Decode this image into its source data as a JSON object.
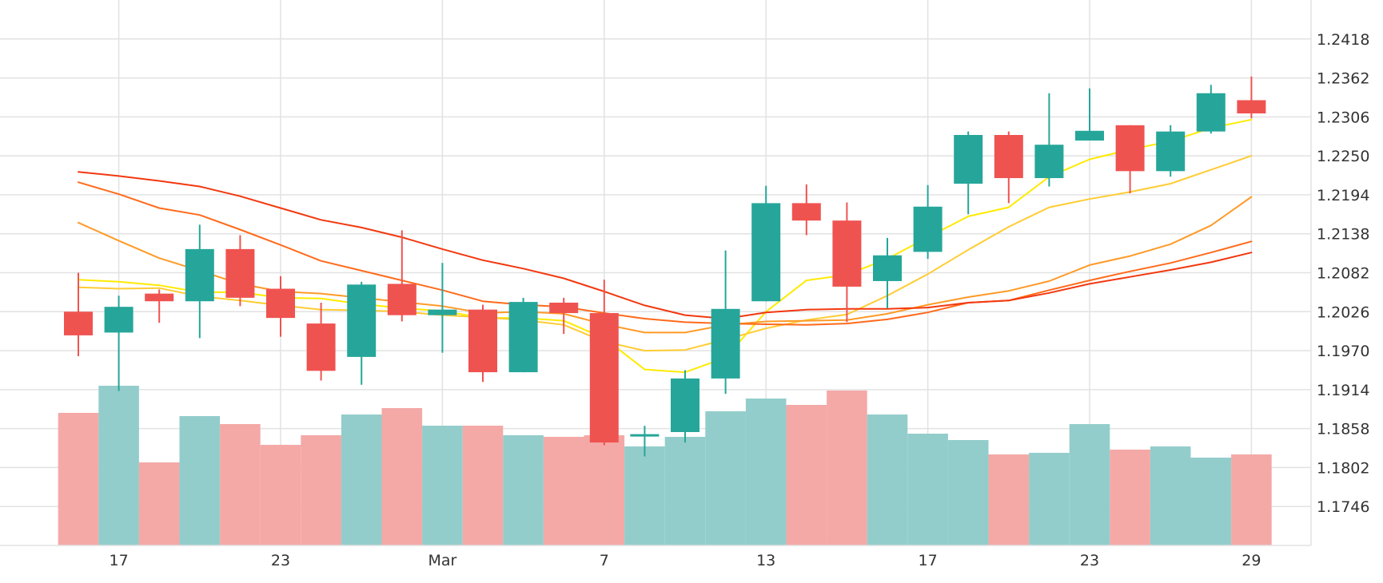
{
  "chart_data": {
    "type": "candlestick",
    "title": "",
    "xlabel": "",
    "ylabel": "",
    "ylim": [
      1.169,
      1.2474
    ],
    "grid": true,
    "y_ticks": [
      "1.2418",
      "1.2362",
      "1.2306",
      "1.2250",
      "1.2194",
      "1.2138",
      "1.2082",
      "1.2026",
      "1.1970",
      "1.1914",
      "1.1858",
      "1.1802",
      "1.1746"
    ],
    "x_ticks": [
      {
        "label": "17",
        "index": 1
      },
      {
        "label": "23",
        "index": 5
      },
      {
        "label": "Mar",
        "index": 9
      },
      {
        "label": "7",
        "index": 13
      },
      {
        "label": "13",
        "index": 17
      },
      {
        "label": "17",
        "index": 21
      },
      {
        "label": "23",
        "index": 25
      },
      {
        "label": "29",
        "index": 29
      }
    ],
    "colors": {
      "up": "#26a69a",
      "down": "#ef5350",
      "up_volume": "#93cdcb",
      "down_volume": "#f4a9a7",
      "grid": "#e2e2e2"
    },
    "candles": [
      {
        "open": 1.2026,
        "high": 1.2082,
        "low": 1.1962,
        "close": 1.1992
      },
      {
        "open": 1.1996,
        "high": 1.2049,
        "low": 1.1912,
        "close": 1.2033
      },
      {
        "open": 1.2052,
        "high": 1.2058,
        "low": 1.201,
        "close": 1.2041
      },
      {
        "open": 1.2041,
        "high": 1.2151,
        "low": 1.1988,
        "close": 1.2116
      },
      {
        "open": 1.2116,
        "high": 1.2136,
        "low": 1.2034,
        "close": 1.2046
      },
      {
        "open": 1.2059,
        "high": 1.2077,
        "low": 1.199,
        "close": 1.2017
      },
      {
        "open": 1.2009,
        "high": 1.2039,
        "low": 1.1927,
        "close": 1.1941
      },
      {
        "open": 1.1961,
        "high": 1.2069,
        "low": 1.1921,
        "close": 1.2065
      },
      {
        "open": 1.2066,
        "high": 1.2143,
        "low": 1.2012,
        "close": 1.2021
      },
      {
        "open": 1.2021,
        "high": 1.2096,
        "low": 1.1967,
        "close": 1.2029
      },
      {
        "open": 1.2029,
        "high": 1.2036,
        "low": 1.1925,
        "close": 1.1939
      },
      {
        "open": 1.1939,
        "high": 1.2046,
        "low": 1.1939,
        "close": 1.204
      },
      {
        "open": 1.2039,
        "high": 1.2046,
        "low": 1.1994,
        "close": 1.2024
      },
      {
        "open": 1.2024,
        "high": 1.2072,
        "low": 1.1834,
        "close": 1.1838
      },
      {
        "open": 1.1848,
        "high": 1.1862,
        "low": 1.1818,
        "close": 1.185
      },
      {
        "open": 1.1853,
        "high": 1.1942,
        "low": 1.1838,
        "close": 1.193
      },
      {
        "open": 1.193,
        "high": 1.2114,
        "low": 1.1908,
        "close": 1.203
      },
      {
        "open": 1.2041,
        "high": 1.2207,
        "low": 1.2041,
        "close": 1.2182
      },
      {
        "open": 1.2182,
        "high": 1.2209,
        "low": 1.2136,
        "close": 1.2157
      },
      {
        "open": 1.2157,
        "high": 1.2183,
        "low": 1.2011,
        "close": 1.2062
      },
      {
        "open": 1.207,
        "high": 1.2132,
        "low": 1.2031,
        "close": 1.2107
      },
      {
        "open": 1.2112,
        "high": 1.2208,
        "low": 1.2102,
        "close": 1.2177
      },
      {
        "open": 1.221,
        "high": 1.2285,
        "low": 1.2166,
        "close": 1.228
      },
      {
        "open": 1.228,
        "high": 1.2285,
        "low": 1.2182,
        "close": 1.2218
      },
      {
        "open": 1.2218,
        "high": 1.234,
        "low": 1.2206,
        "close": 1.2266
      },
      {
        "open": 1.2272,
        "high": 1.2347,
        "low": 1.2272,
        "close": 1.2286
      },
      {
        "open": 1.2294,
        "high": 1.2294,
        "low": 1.2196,
        "close": 1.2228
      },
      {
        "open": 1.2228,
        "high": 1.2294,
        "low": 1.222,
        "close": 1.2285
      },
      {
        "open": 1.2285,
        "high": 1.2352,
        "low": 1.2282,
        "close": 1.234
      },
      {
        "open": 1.233,
        "high": 1.2364,
        "low": 1.2304,
        "close": 1.2311
      }
    ],
    "volume": {
      "max": 1.0,
      "values": [
        0.83,
        1.0,
        0.52,
        0.81,
        0.76,
        0.63,
        0.69,
        0.82,
        0.86,
        0.75,
        0.75,
        0.69,
        0.68,
        0.69,
        0.62,
        0.68,
        0.84,
        0.92,
        0.88,
        0.97,
        0.82,
        0.7,
        0.66,
        0.57,
        0.58,
        0.76,
        0.6,
        0.62,
        0.55,
        0.57
      ]
    },
    "series": [
      {
        "color": "#ffea00",
        "values": [
          1.2072,
          1.2069,
          1.2064,
          1.2054,
          1.2054,
          1.2046,
          1.2045,
          1.2037,
          1.2031,
          1.2027,
          1.2017,
          1.2017,
          1.2013,
          1.1988,
          1.1943,
          1.1939,
          1.196,
          1.2026,
          1.2071,
          1.2079,
          1.2102,
          1.2133,
          1.2163,
          1.2176,
          1.222,
          1.2245,
          1.2259,
          1.2271,
          1.229,
          1.2302
        ]
      },
      {
        "color": "#ffcc33",
        "values": [
          1.2061,
          1.2059,
          1.206,
          1.2048,
          1.2042,
          1.2035,
          1.2029,
          1.2028,
          1.2026,
          1.2021,
          1.2018,
          1.2014,
          1.2007,
          1.1983,
          1.197,
          1.1971,
          1.1986,
          1.2002,
          1.2014,
          1.2022,
          1.2049,
          1.208,
          1.2115,
          1.2148,
          1.2176,
          1.2188,
          1.2198,
          1.221,
          1.223,
          1.225
        ]
      },
      {
        "color": "#ff9a26",
        "values": [
          1.2154,
          1.2128,
          1.2103,
          1.2085,
          1.2066,
          1.2055,
          1.2052,
          1.2046,
          1.204,
          1.2034,
          1.2024,
          1.2026,
          1.2023,
          1.2008,
          1.1996,
          1.1996,
          1.2007,
          1.2012,
          1.2013,
          1.2014,
          1.2023,
          1.2036,
          1.2047,
          1.2056,
          1.207,
          1.2093,
          1.2106,
          1.2123,
          1.215,
          1.2191
        ]
      },
      {
        "color": "#ff6a1a",
        "values": [
          1.2212,
          1.2195,
          1.2175,
          1.2165,
          1.2144,
          1.2122,
          1.2099,
          1.2085,
          1.2071,
          1.2057,
          1.2041,
          1.2036,
          1.2033,
          1.2024,
          1.2016,
          1.2011,
          1.2009,
          1.2008,
          1.2007,
          1.2009,
          1.2015,
          1.2025,
          1.2039,
          1.2042,
          1.2057,
          1.2071,
          1.2084,
          1.2096,
          1.2111,
          1.2127
        ]
      },
      {
        "color": "#f2380f",
        "values": [
          1.2227,
          1.2221,
          1.2214,
          1.2206,
          1.2192,
          1.2175,
          1.2158,
          1.2147,
          1.2133,
          1.2116,
          1.21,
          1.2088,
          1.2074,
          1.2055,
          1.2035,
          1.2021,
          1.2016,
          1.2025,
          1.2029,
          1.203,
          1.203,
          1.2032,
          1.2039,
          1.2042,
          1.2053,
          1.2066,
          1.2076,
          1.2086,
          1.2097,
          1.2111
        ]
      }
    ]
  }
}
